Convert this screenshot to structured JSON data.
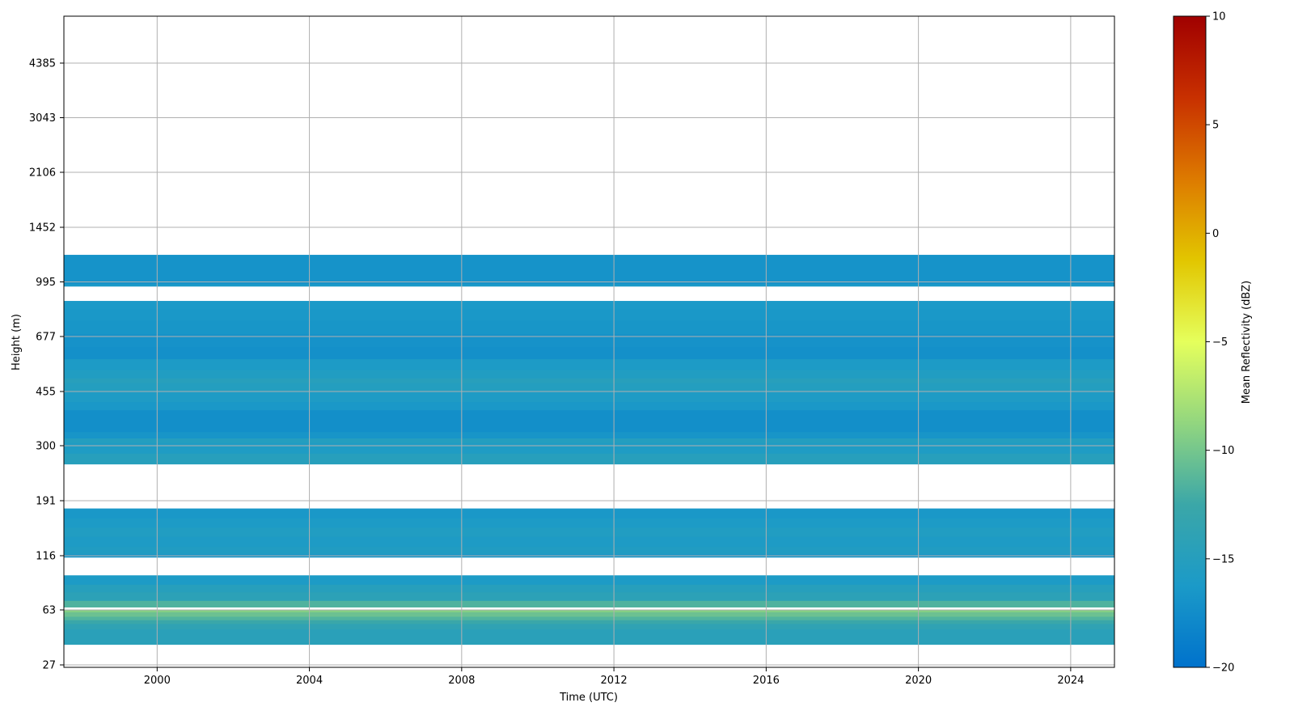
{
  "chart_data": {
    "type": "heatmap",
    "title": "",
    "xlabel": "Time (UTC)",
    "ylabel": "Height (m)",
    "xlim": [
      1997.55,
      2025.15
    ],
    "x_ticks": [
      2000,
      2004,
      2008,
      2012,
      2016,
      2020,
      2024
    ],
    "x_tick_labels": [
      "2000",
      "2004",
      "2008",
      "2012",
      "2016",
      "2020",
      "2024"
    ],
    "y_ticks": [
      27,
      63,
      116,
      191,
      300,
      455,
      677,
      995,
      1452,
      2106,
      3043,
      4385
    ],
    "y_tick_labels": [
      "27",
      "63",
      "116",
      "191",
      "300",
      "455",
      "677",
      "995",
      "1452",
      "2106",
      "3043",
      "4385"
    ],
    "grid": true,
    "colorbar": {
      "label": "Mean Reflectivity (dBZ)",
      "vmin": -20,
      "vmax": 10,
      "ticks": [
        10,
        5,
        0,
        -5,
        -10,
        -15,
        -20
      ],
      "tick_labels": [
        "10",
        "5",
        "0",
        "−5",
        "−10",
        "−15",
        "−20"
      ],
      "colormap": [
        "#0072cc",
        "#1b9ac8",
        "#3ba7a8",
        "#92d67f",
        "#e5ff5c",
        "#e2c600",
        "#dd7a00",
        "#c83000",
        "#a00000"
      ]
    },
    "layers": [
      {
        "h_bottom": 37,
        "h_top": 47,
        "dbz": -14.5
      },
      {
        "h_bottom": 47,
        "h_top": 51,
        "dbz": -13.8
      },
      {
        "h_bottom": 51,
        "h_top": 54,
        "dbz": -12.6
      },
      {
        "h_bottom": 54,
        "h_top": 57,
        "dbz": -11.5
      },
      {
        "h_bottom": 57,
        "h_top": 61,
        "dbz": -10.4
      },
      {
        "h_bottom": 61,
        "h_top": 63,
        "dbz": -9.3
      },
      {
        "h_bottom": 65,
        "h_top": 70,
        "dbz": -11.6
      },
      {
        "h_bottom": 70,
        "h_top": 77,
        "dbz": -14.3
      },
      {
        "h_bottom": 77,
        "h_top": 84,
        "dbz": -14.8
      },
      {
        "h_bottom": 84,
        "h_top": 93,
        "dbz": -16.0
      },
      {
        "h_bottom": 114,
        "h_top": 118,
        "dbz": -16.6
      },
      {
        "h_bottom": 118,
        "h_top": 126,
        "dbz": -15.6
      },
      {
        "h_bottom": 126,
        "h_top": 138,
        "dbz": -15.9
      },
      {
        "h_bottom": 138,
        "h_top": 150,
        "dbz": -15.5
      },
      {
        "h_bottom": 150,
        "h_top": 163,
        "dbz": -16.0
      },
      {
        "h_bottom": 163,
        "h_top": 178,
        "dbz": -16.4
      },
      {
        "h_bottom": 258,
        "h_top": 282,
        "dbz": -14.8
      },
      {
        "h_bottom": 282,
        "h_top": 307,
        "dbz": -15.8
      },
      {
        "h_bottom": 307,
        "h_top": 318,
        "dbz": -15.2
      },
      {
        "h_bottom": 318,
        "h_top": 334,
        "dbz": -16.7
      },
      {
        "h_bottom": 334,
        "h_top": 395,
        "dbz": -17.3
      },
      {
        "h_bottom": 395,
        "h_top": 420,
        "dbz": -16.4
      },
      {
        "h_bottom": 420,
        "h_top": 458,
        "dbz": -15.9
      },
      {
        "h_bottom": 458,
        "h_top": 485,
        "dbz": -15.2
      },
      {
        "h_bottom": 485,
        "h_top": 501,
        "dbz": -14.7
      },
      {
        "h_bottom": 501,
        "h_top": 532,
        "dbz": -15.5
      },
      {
        "h_bottom": 532,
        "h_top": 576,
        "dbz": -16.0
      },
      {
        "h_bottom": 576,
        "h_top": 628,
        "dbz": -17.2
      },
      {
        "h_bottom": 628,
        "h_top": 690,
        "dbz": -17.0
      },
      {
        "h_bottom": 690,
        "h_top": 757,
        "dbz": -16.6
      },
      {
        "h_bottom": 757,
        "h_top": 821,
        "dbz": -16.4
      },
      {
        "h_bottom": 821,
        "h_top": 870,
        "dbz": -16.2
      },
      {
        "h_bottom": 965,
        "h_top": 981,
        "dbz": -16.2
      },
      {
        "h_bottom": 981,
        "h_top": 1200,
        "dbz": -16.9
      }
    ]
  }
}
